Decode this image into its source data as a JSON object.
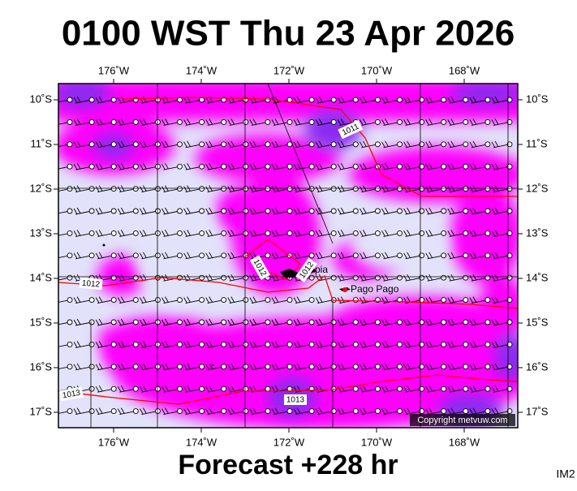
{
  "header": {
    "title": "0100 WST Thu 23 Apr 2026"
  },
  "footer": {
    "forecast": "Forecast +228 hr",
    "code": "IM2"
  },
  "map": {
    "lon_ticks": [
      {
        "value": -176,
        "label": "176˚W"
      },
      {
        "value": -174,
        "label": "174˚W"
      },
      {
        "value": -172,
        "label": "172˚W"
      },
      {
        "value": -170,
        "label": "170˚W"
      },
      {
        "value": -168,
        "label": "168˚W"
      }
    ],
    "lat_ticks": [
      {
        "value": -10,
        "label": "10˚S"
      },
      {
        "value": -11,
        "label": "11˚S"
      },
      {
        "value": -12,
        "label": "12˚S"
      },
      {
        "value": -13,
        "label": "13˚S"
      },
      {
        "value": -14,
        "label": "14˚S"
      },
      {
        "value": -15,
        "label": "15˚S"
      },
      {
        "value": -16,
        "label": "16˚S"
      },
      {
        "value": -17,
        "label": "17˚S"
      }
    ],
    "isobar_labels": [
      "1011",
      "1012",
      "1012",
      "1012",
      "1013",
      "1013"
    ],
    "places": [
      "Apia",
      "Pago Pago"
    ],
    "copyright": "Copyright metvuw.com"
  }
}
